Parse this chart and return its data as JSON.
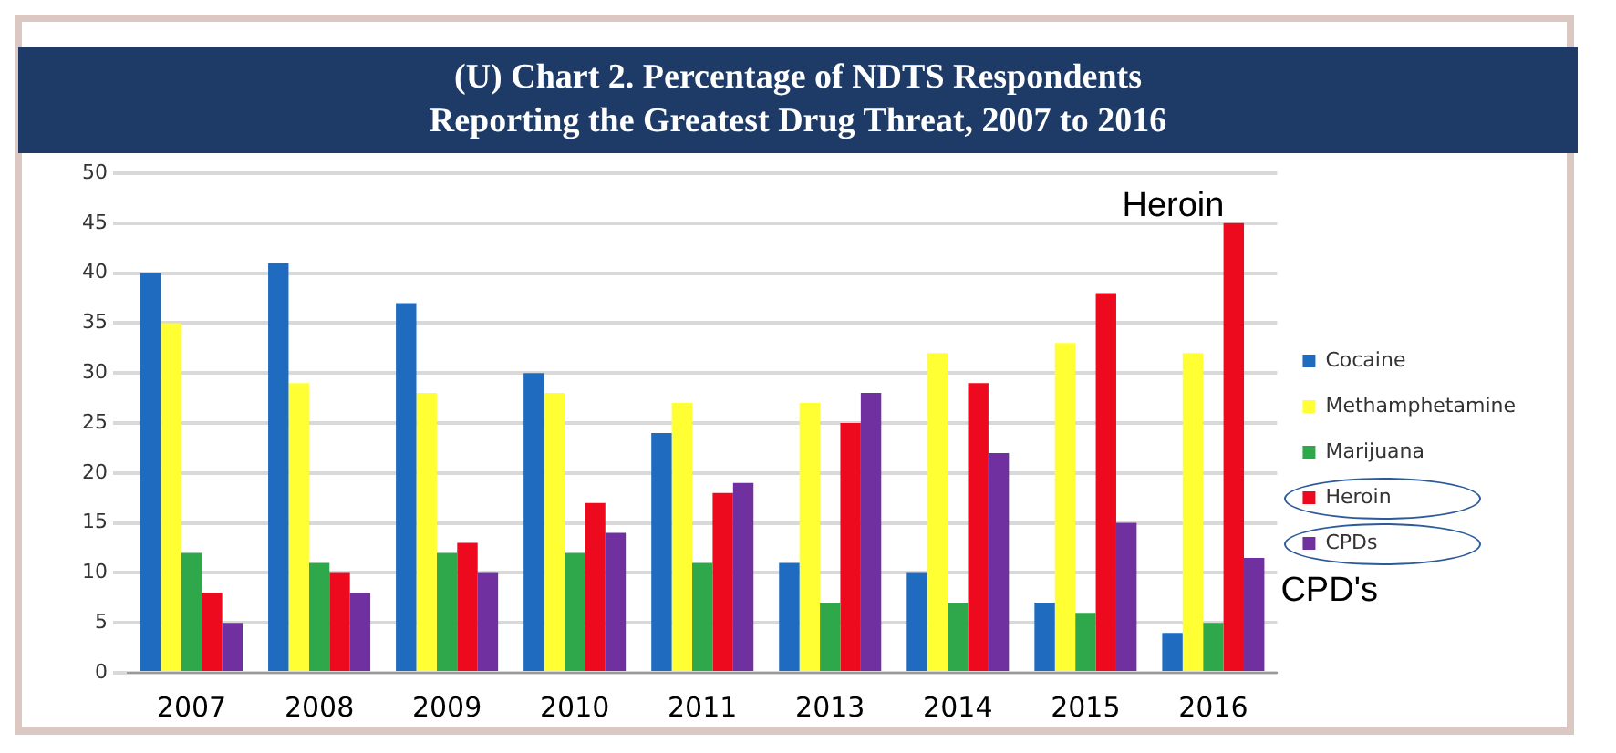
{
  "chart_data": {
    "type": "bar",
    "title": "(U)  Chart 2.  Percentage of NDTS Respondents\nReporting the Greatest Drug Threat, 2007 to 2016",
    "categories": [
      "2007",
      "2008",
      "2009",
      "2010",
      "2011",
      "2013",
      "2014",
      "2015",
      "2016"
    ],
    "series": [
      {
        "name": "Cocaine",
        "color": "#1f6bbf",
        "values": [
          40,
          41,
          37,
          30,
          24,
          11,
          10,
          7,
          4
        ]
      },
      {
        "name": "Methamphetamine",
        "color": "#ffff33",
        "values": [
          35,
          29,
          28,
          28,
          27,
          27,
          32,
          33,
          32
        ]
      },
      {
        "name": "Marijuana",
        "color": "#2ea84a",
        "values": [
          12,
          11,
          12,
          12,
          11,
          7,
          7,
          6,
          5
        ]
      },
      {
        "name": "Heroin",
        "color": "#ee0a1e",
        "values": [
          8,
          10,
          13,
          17,
          18,
          25,
          29,
          38,
          45
        ]
      },
      {
        "name": "CPDs",
        "color": "#7030a0",
        "values": [
          5,
          8,
          10,
          14,
          19,
          28,
          22,
          15,
          11.5
        ]
      }
    ],
    "ylim": [
      0,
      50
    ],
    "yticks": [
      0,
      5,
      10,
      15,
      20,
      25,
      30,
      35,
      40,
      45,
      50
    ],
    "grid": "y",
    "legend": "right",
    "annotations": [
      "Heroin",
      "CPD's"
    ]
  }
}
